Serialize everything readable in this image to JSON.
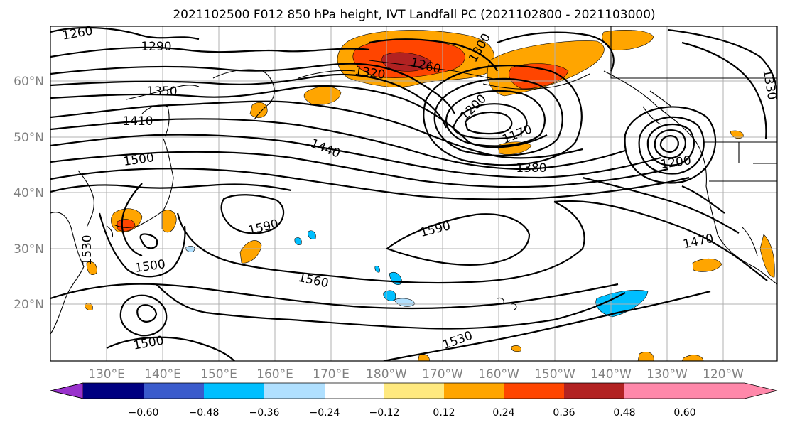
{
  "title": "2021102500 F012 850 hPa height, IVT Landfall PC (2021102800 - 2021103000)",
  "map": {
    "lon_ticks": [
      "130°E",
      "140°E",
      "150°E",
      "160°E",
      "170°E",
      "180°W",
      "170°W",
      "160°W",
      "150°W",
      "140°W",
      "130°W",
      "120°W"
    ],
    "lat_ticks": [
      "60°N",
      "50°N",
      "40°N",
      "30°N",
      "20°N"
    ],
    "contour_labels": [
      "1260",
      "1290",
      "1320",
      "1350",
      "1410",
      "1500",
      "1440",
      "1380",
      "1590",
      "1590",
      "1500",
      "1560",
      "1500",
      "1530",
      "1530",
      "1470",
      "1200",
      "1170",
      "1260",
      "1200",
      "1330",
      "1300"
    ]
  },
  "colorbar": {
    "colors": [
      "#9932cc",
      "#000080",
      "#3a5bcc",
      "#00bfff",
      "#b0e0ff",
      "#ffffff",
      "#ffe97f",
      "#ffa500",
      "#ff4500",
      "#b22222",
      "#ff88aa"
    ],
    "tick_labels": [
      "−0.60",
      "−0.48",
      "−0.36",
      "−0.24",
      "−0.12",
      "0.12",
      "0.24",
      "0.36",
      "0.48",
      "0.60"
    ]
  },
  "colors": {
    "positive_low": "#ffe97f",
    "positive_mid": "#ffa500",
    "positive_high": "#ff4500",
    "positive_max": "#b22222",
    "negative_low": "#b0e0ff",
    "negative_mid": "#00bfff"
  }
}
